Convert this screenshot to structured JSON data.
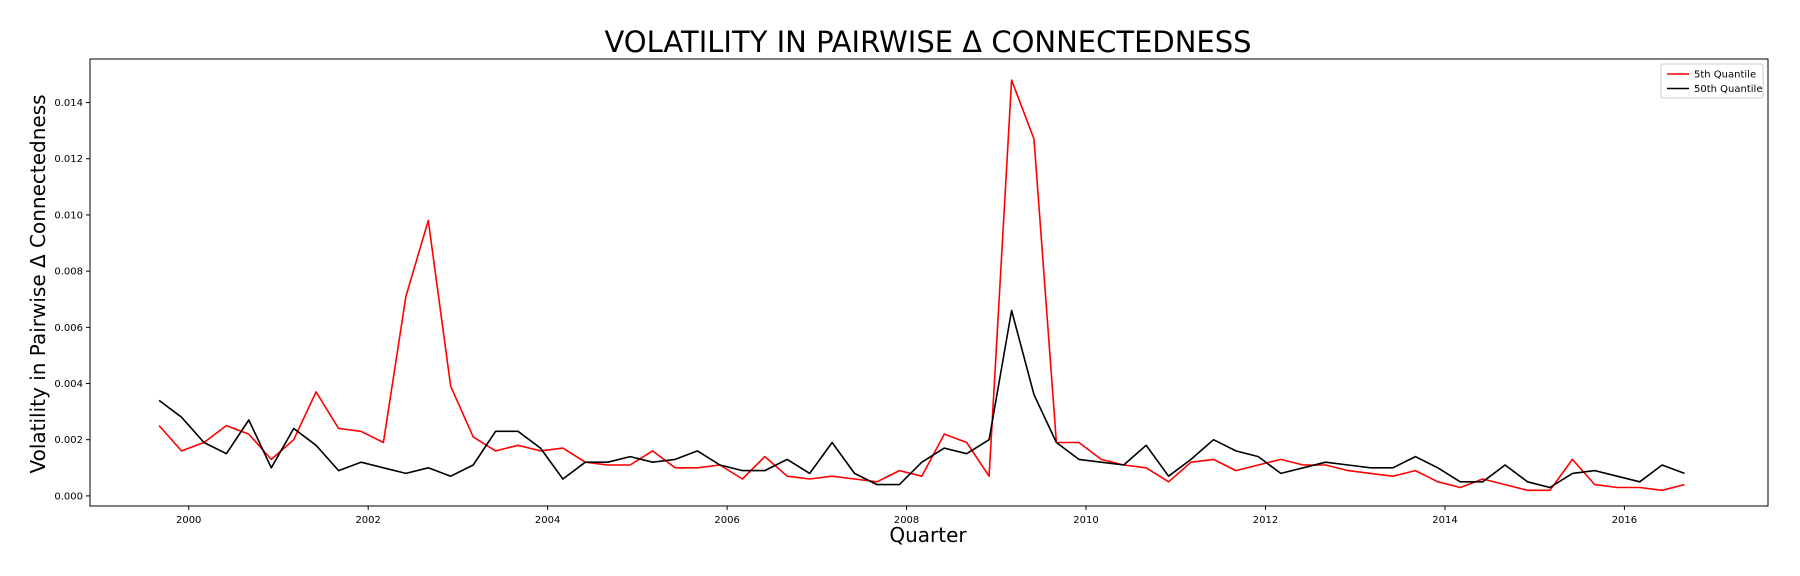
{
  "chart_data": {
    "type": "line",
    "title": "VOLATILITY IN PAIRWISE Δ CONNECTEDNESS",
    "xlabel": "Quarter",
    "ylabel": "Volatility in Pairwise Δ Connectedness",
    "xlim": [
      1998.9,
      2017.6
    ],
    "ylim": [
      -0.00036,
      0.01555
    ],
    "x_ticks": [
      2000,
      2002,
      2004,
      2006,
      2008,
      2010,
      2012,
      2014,
      2016
    ],
    "y_ticks": [
      0.0,
      0.002,
      0.004,
      0.006,
      0.008,
      0.01,
      0.012,
      0.014
    ],
    "y_tick_labels": [
      "0.000",
      "0.002",
      "0.004",
      "0.006",
      "0.008",
      "0.010",
      "0.012",
      "0.014"
    ],
    "grid": false,
    "legend_position": "top-right",
    "x": [
      1999.67,
      1999.92,
      2000.17,
      2000.42,
      2000.67,
      2000.92,
      2001.17,
      2001.42,
      2001.67,
      2001.92,
      2002.17,
      2002.42,
      2002.67,
      2002.92,
      2003.17,
      2003.42,
      2003.67,
      2003.92,
      2004.17,
      2004.42,
      2004.67,
      2004.92,
      2005.17,
      2005.42,
      2005.67,
      2005.92,
      2006.17,
      2006.42,
      2006.67,
      2006.92,
      2007.17,
      2007.42,
      2007.67,
      2007.92,
      2008.17,
      2008.42,
      2008.67,
      2008.92,
      2009.17,
      2009.42,
      2009.67,
      2009.92,
      2010.17,
      2010.42,
      2010.67,
      2010.92,
      2011.17,
      2011.42,
      2011.67,
      2011.92,
      2012.17,
      2012.42,
      2012.67,
      2012.92,
      2013.17,
      2013.42,
      2013.67,
      2013.92,
      2014.17,
      2014.42,
      2014.67,
      2014.92,
      2015.17,
      2015.42,
      2015.67,
      2015.92,
      2016.17,
      2016.42,
      2016.67
    ],
    "series": [
      {
        "name": "5th Quantile",
        "color": "#ff0000",
        "values": [
          0.0025,
          0.0016,
          0.0019,
          0.0025,
          0.0022,
          0.0013,
          0.002,
          0.0037,
          0.0024,
          0.0023,
          0.0019,
          0.0071,
          0.0098,
          0.0039,
          0.0021,
          0.0016,
          0.0018,
          0.0016,
          0.0017,
          0.0012,
          0.0011,
          0.0011,
          0.0016,
          0.001,
          0.001,
          0.0011,
          0.0006,
          0.0014,
          0.0007,
          0.0006,
          0.0007,
          0.0006,
          0.0005,
          0.0009,
          0.0007,
          0.0022,
          0.0019,
          0.0007,
          0.0148,
          0.0127,
          0.0019,
          0.0019,
          0.0013,
          0.0011,
          0.001,
          0.0005,
          0.0012,
          0.0013,
          0.0009,
          0.0011,
          0.0013,
          0.0011,
          0.0011,
          0.0009,
          0.0008,
          0.0007,
          0.0009,
          0.0005,
          0.0003,
          0.0006,
          0.0004,
          0.0002,
          0.0002,
          0.0013,
          0.0004,
          0.0003,
          0.0003,
          0.0002,
          0.0004
        ]
      },
      {
        "name": "50th Quantile",
        "color": "#000000",
        "values": [
          0.0034,
          0.0028,
          0.0019,
          0.0015,
          0.0027,
          0.001,
          0.0024,
          0.0018,
          0.0009,
          0.0012,
          0.001,
          0.0008,
          0.001,
          0.0007,
          0.0011,
          0.0023,
          0.0023,
          0.0017,
          0.0006,
          0.0012,
          0.0012,
          0.0014,
          0.0012,
          0.0013,
          0.0016,
          0.0011,
          0.0009,
          0.0009,
          0.0013,
          0.0008,
          0.0019,
          0.0008,
          0.0004,
          0.0004,
          0.0012,
          0.0017,
          0.0015,
          0.002,
          0.0066,
          0.0036,
          0.0019,
          0.0013,
          0.0012,
          0.0011,
          0.0018,
          0.0007,
          0.0013,
          0.002,
          0.0016,
          0.0014,
          0.0008,
          0.001,
          0.0012,
          0.0011,
          0.001,
          0.001,
          0.0014,
          0.001,
          0.0005,
          0.0005,
          0.0011,
          0.0005,
          0.0003,
          0.0008,
          0.0009,
          0.0007,
          0.0005,
          0.0011,
          0.0008
        ]
      }
    ]
  }
}
